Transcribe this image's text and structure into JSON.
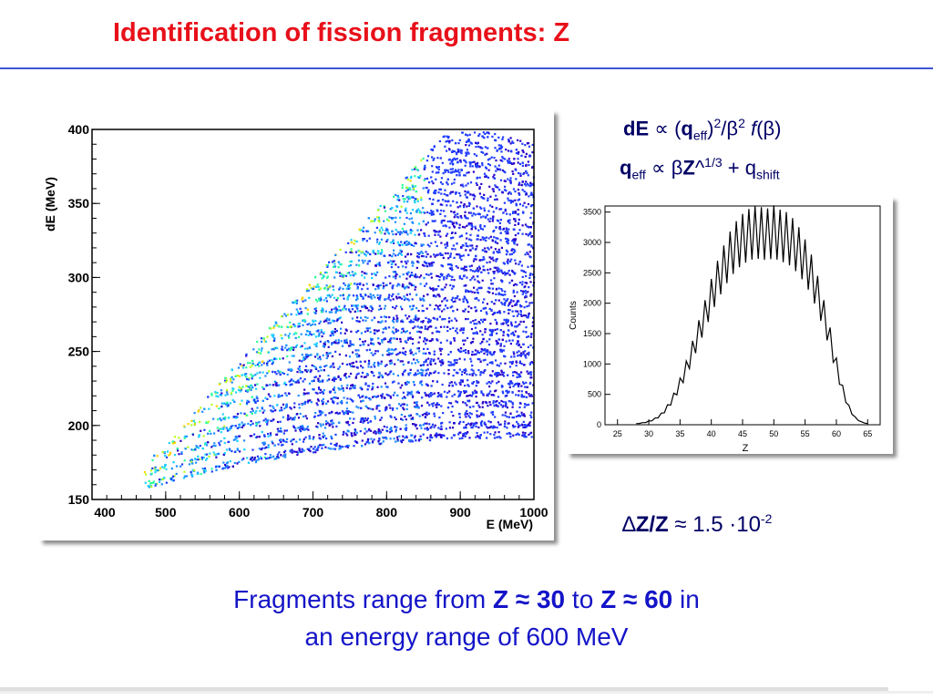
{
  "slide": {
    "title": "Identification of fission fragments: Z",
    "formula1": {
      "a": "dE",
      "b": " ∝ (",
      "c": "q",
      "d": "eff",
      "e": ")",
      "f": "2",
      "g": "/β",
      "h": "2",
      "i": " ",
      "j": "f",
      "k": "(β)"
    },
    "formula2": {
      "a": "q",
      "b": "eff",
      "c": " ∝ β",
      "d": "Z",
      "e": "^",
      "f": "1/3",
      "g": " + q",
      "h": "shift"
    },
    "resolution": {
      "a": "∆",
      "b": "Z/Z",
      "c": " ≈ 1.5 ·10",
      "d": "-2"
    },
    "caption": {
      "line1_a": "Fragments range from ",
      "line1_b": "Z ≈ 30",
      "line1_c": " to ",
      "line1_d": "Z ≈ 60",
      "line1_e": " in",
      "line2": "an energy range of 600 MeV"
    }
  },
  "chart_data": [
    {
      "type": "heatmap",
      "title": "",
      "xlabel": "E (MeV)",
      "ylabel": "dE (MeV)",
      "xlim": [
        400,
        1000
      ],
      "ylim": [
        150,
        400
      ],
      "x_ticks": [
        400,
        500,
        600,
        700,
        800,
        900,
        1000
      ],
      "y_ticks": [
        150,
        200,
        250,
        300,
        350,
        400
      ],
      "x_tick_labels": [
        "400",
        "500",
        "600",
        "700",
        "800",
        "900",
        "1000"
      ],
      "y_tick_labels": [
        "150",
        "200",
        "250",
        "300",
        "350",
        "400"
      ],
      "band_count": 30,
      "colors": [
        "#2a00c8",
        "#1f3cff",
        "#1f8cff",
        "#20d2ff",
        "#2cff9a",
        "#b8ff20",
        "#ffd400"
      ]
    },
    {
      "type": "line",
      "title": "",
      "xlabel": "Z",
      "ylabel": "Counts",
      "xlim": [
        23,
        67
      ],
      "ylim": [
        0,
        3600
      ],
      "x_ticks": [
        25,
        30,
        35,
        40,
        45,
        50,
        55,
        60,
        65
      ],
      "y_ticks": [
        0,
        500,
        1000,
        1500,
        2000,
        2500,
        3000,
        3500
      ],
      "x_tick_labels": [
        "25",
        "30",
        "35",
        "40",
        "45",
        "50",
        "55",
        "60",
        "65"
      ],
      "y_tick_labels": [
        "0",
        "500",
        "1000",
        "1500",
        "2000",
        "2500",
        "3000",
        "3500"
      ],
      "series": [
        {
          "x": [
            28,
            29,
            30,
            31,
            32,
            33,
            34,
            35,
            36,
            37,
            38,
            39,
            40,
            41,
            42,
            43,
            44,
            45,
            46,
            47,
            48,
            49,
            50,
            51,
            52,
            53,
            54,
            55,
            56,
            57,
            58,
            59,
            60,
            61,
            62,
            63,
            64,
            65
          ],
          "values": [
            20,
            35,
            60,
            110,
            190,
            330,
            520,
            770,
            1050,
            1380,
            1720,
            2050,
            2400,
            2700,
            2950,
            3180,
            3350,
            3470,
            3550,
            3600,
            3580,
            3560,
            3610,
            3540,
            3500,
            3400,
            3250,
            3050,
            2800,
            2450,
            2050,
            1600,
            1100,
            650,
            320,
            130,
            50,
            20
          ]
        }
      ]
    }
  ]
}
